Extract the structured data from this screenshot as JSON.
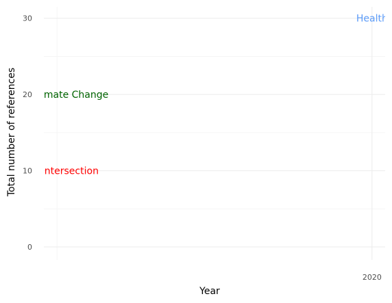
{
  "chart_data": {
    "type": "line",
    "xlabel": "Year",
    "ylabel": "Total number of references",
    "x_ticks": [
      "2020"
    ],
    "y_ticks": [
      "0",
      "10",
      "20",
      "30"
    ],
    "xlim": [
      1995,
      2021
    ],
    "ylim": [
      -1.7,
      31.5
    ],
    "grid": true,
    "legend": "none",
    "series_labels": [
      {
        "text": "Health",
        "x": 2020,
        "y": 30,
        "color": "#5b9bf8"
      },
      {
        "text": "Climate Change",
        "x": 1997,
        "y": 20,
        "color": "#006400"
      },
      {
        "text": "Intersection",
        "x": 1997,
        "y": 10,
        "color": "#ff0000"
      }
    ]
  }
}
